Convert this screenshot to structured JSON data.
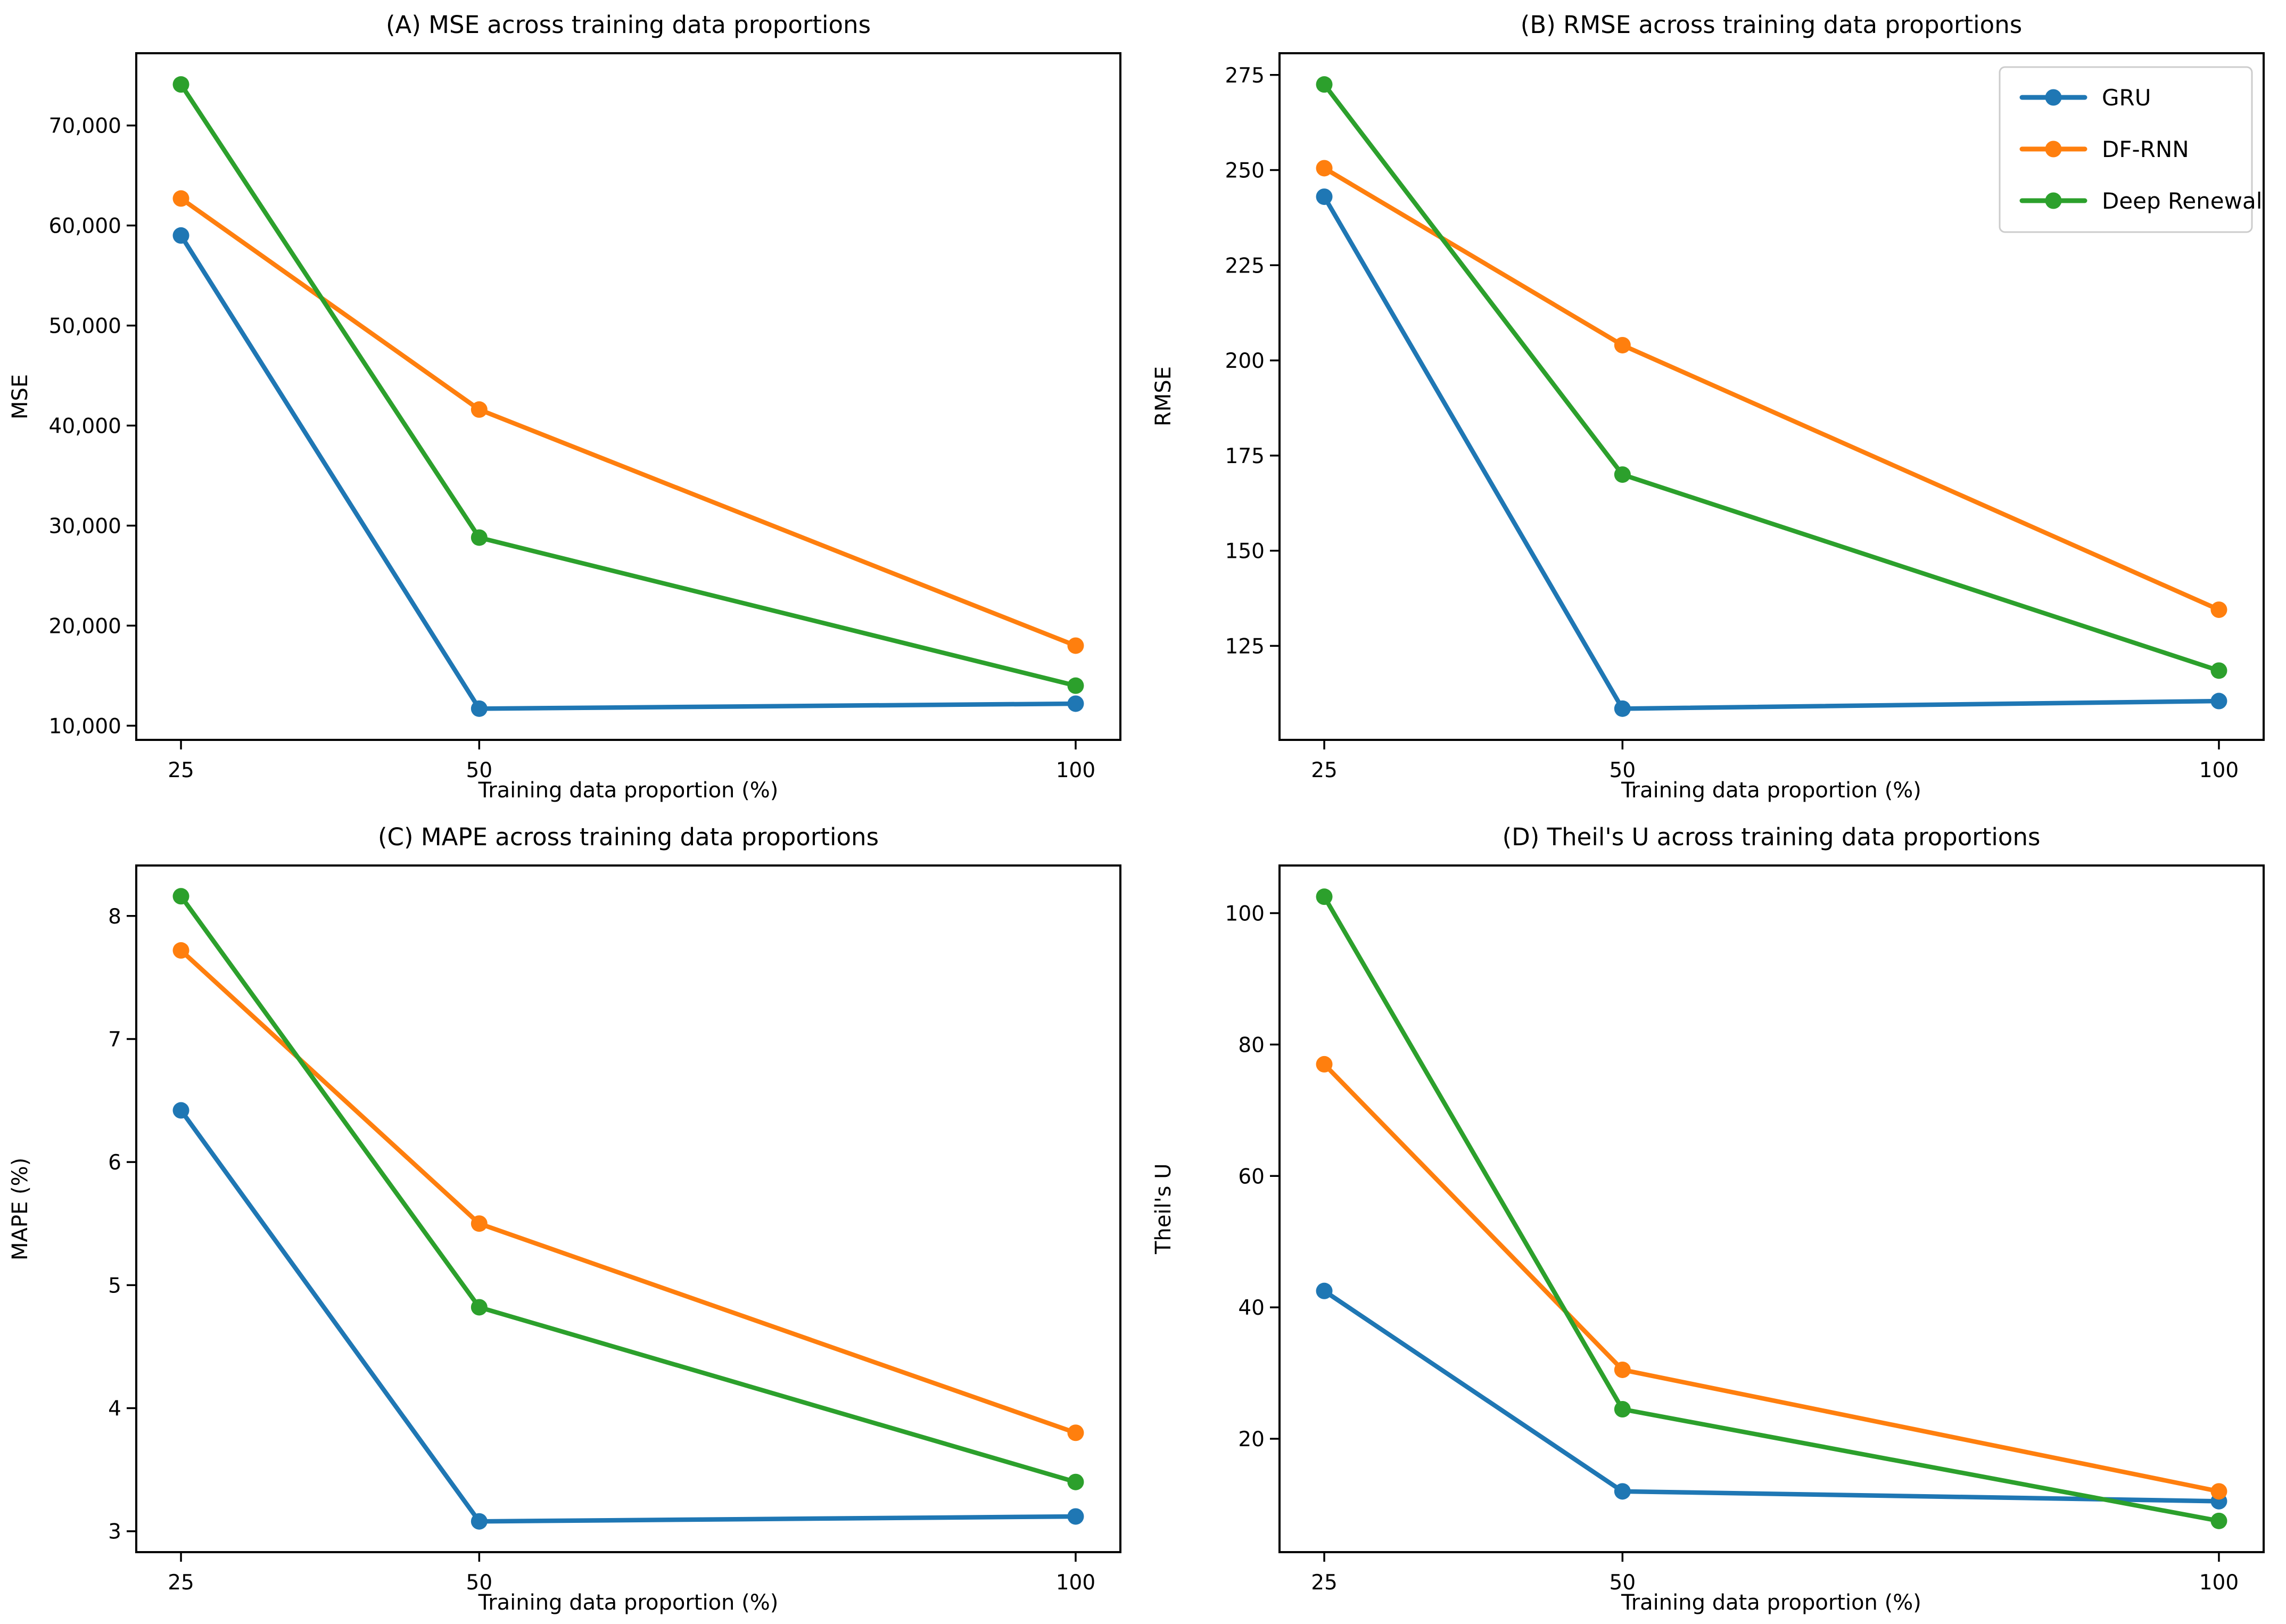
{
  "figure": {
    "background": "#ffffff",
    "text_color": "#000000",
    "spine_color": "#000000",
    "legend_border_color": "#cccccc",
    "legend_background": "#ffffff"
  },
  "models": [
    {
      "name": "GRU",
      "color": "#1f77b4"
    },
    {
      "name": "DF-RNN",
      "color": "#ff7f0e"
    },
    {
      "name": "Deep Renewal",
      "color": "#2ca02c"
    }
  ],
  "chart_data": [
    {
      "type": "line",
      "panel": "A",
      "title": "(A) MSE across training data proportions",
      "xlabel": "Training data proportion (%)",
      "ylabel": "MSE",
      "x": [
        25,
        50,
        100
      ],
      "x_tick_labels": [
        "25",
        "50",
        "100"
      ],
      "xlim": [
        21.25,
        103.75
      ],
      "series": [
        {
          "name": "GRU",
          "color": "#1f77b4",
          "values": [
            59000,
            11700,
            12200
          ]
        },
        {
          "name": "DF-RNN",
          "color": "#ff7f0e",
          "values": [
            62700,
            41600,
            18000
          ]
        },
        {
          "name": "Deep Renewal",
          "color": "#2ca02c",
          "values": [
            74100,
            28800,
            14000
          ]
        }
      ],
      "ylim": [
        8580,
        77220
      ],
      "y_tick_values": [
        10000,
        20000,
        30000,
        40000,
        50000,
        60000,
        70000
      ],
      "y_tick_labels": [
        "10,000",
        "20,000",
        "30,000",
        "40,000",
        "50,000",
        "60,000",
        "70,000"
      ],
      "grid": false,
      "legend": false
    },
    {
      "type": "line",
      "panel": "B",
      "title": "(B) RMSE across training data proportions",
      "xlabel": "Training data proportion (%)",
      "ylabel": "RMSE",
      "x": [
        25,
        50,
        100
      ],
      "x_tick_labels": [
        "25",
        "50",
        "100"
      ],
      "xlim": [
        21.25,
        103.75
      ],
      "series": [
        {
          "name": "GRU",
          "color": "#1f77b4",
          "values": [
            243,
            108.5,
            110.5
          ]
        },
        {
          "name": "DF-RNN",
          "color": "#ff7f0e",
          "values": [
            250.5,
            204,
            134.5
          ]
        },
        {
          "name": "Deep Renewal",
          "color": "#2ca02c",
          "values": [
            272.5,
            170,
            118.5
          ]
        }
      ],
      "ylim": [
        100.3,
        280.7
      ],
      "y_tick_values": [
        125,
        150,
        175,
        200,
        225,
        250,
        275
      ],
      "y_tick_labels": [
        "125",
        "150",
        "175",
        "200",
        "225",
        "250",
        "275"
      ],
      "grid": false,
      "legend": true,
      "legend_position": "upper-right",
      "legend_entries": [
        "GRU",
        "DF-RNN",
        "Deep Renewal"
      ]
    },
    {
      "type": "line",
      "panel": "C",
      "title": "(C) MAPE across training data proportions",
      "xlabel": "Training data proportion (%)",
      "ylabel": "MAPE (%)",
      "x": [
        25,
        50,
        100
      ],
      "x_tick_labels": [
        "25",
        "50",
        "100"
      ],
      "xlim": [
        21.25,
        103.75
      ],
      "series": [
        {
          "name": "GRU",
          "color": "#1f77b4",
          "values": [
            6.42,
            3.08,
            3.12
          ]
        },
        {
          "name": "DF-RNN",
          "color": "#ff7f0e",
          "values": [
            7.72,
            5.5,
            3.8
          ]
        },
        {
          "name": "Deep Renewal",
          "color": "#2ca02c",
          "values": [
            8.16,
            4.82,
            3.4
          ]
        }
      ],
      "ylim": [
        2.83,
        8.41
      ],
      "y_tick_values": [
        3,
        4,
        5,
        6,
        7,
        8
      ],
      "y_tick_labels": [
        "3",
        "4",
        "5",
        "6",
        "7",
        "8"
      ],
      "grid": false,
      "legend": false
    },
    {
      "type": "line",
      "panel": "D",
      "title": "(D) Theil's U across training data proportions",
      "xlabel": "Training data proportion (%)",
      "ylabel": "Theil's U",
      "x": [
        25,
        50,
        100
      ],
      "x_tick_labels": [
        "25",
        "50",
        "100"
      ],
      "xlim": [
        21.25,
        103.75
      ],
      "series": [
        {
          "name": "GRU",
          "color": "#1f77b4",
          "values": [
            42.5,
            12,
            10.5
          ]
        },
        {
          "name": "DF-RNN",
          "color": "#ff7f0e",
          "values": [
            77,
            30.5,
            12
          ]
        },
        {
          "name": "Deep Renewal",
          "color": "#2ca02c",
          "values": [
            102.5,
            24.5,
            7.5
          ]
        }
      ],
      "ylim": [
        2.75,
        107.25
      ],
      "y_tick_values": [
        20,
        40,
        60,
        80,
        100
      ],
      "y_tick_labels": [
        "20",
        "40",
        "60",
        "80",
        "100"
      ],
      "grid": false,
      "legend": false
    }
  ]
}
